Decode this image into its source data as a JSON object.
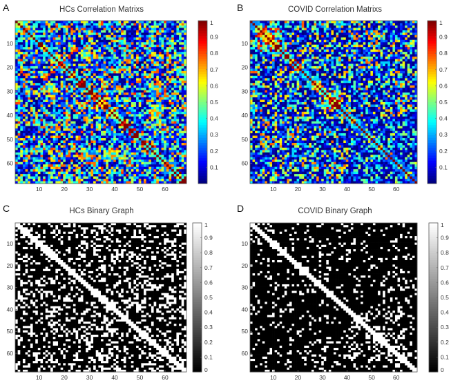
{
  "chart_data": [
    {
      "type": "heatmap",
      "panel": "A",
      "title": "HCs Correlation Matrixs",
      "colormap": "jet",
      "size": 68,
      "seed": 11,
      "pattern": "hc_corr",
      "x_ticks": [
        10,
        20,
        30,
        40,
        50,
        60
      ],
      "y_ticks": [
        10,
        20,
        30,
        40,
        50,
        60
      ],
      "colorbar": {
        "min": 0,
        "max": 1,
        "ticks": [
          0.1,
          0.2,
          0.3,
          0.4,
          0.5,
          0.6,
          0.7,
          0.8,
          0.9,
          1
        ]
      },
      "x_tick_labels": [
        "10",
        "20",
        "30",
        "40",
        "50",
        "60"
      ],
      "y_tick_labels": [
        "10",
        "20",
        "30",
        "40",
        "50",
        "60"
      ],
      "colorbar_labels": [
        "0.1",
        "0.2",
        "0.3",
        "0.4",
        "0.5",
        "0.6",
        "0.7",
        "0.8",
        "0.9",
        "1"
      ]
    },
    {
      "type": "heatmap",
      "panel": "B",
      "title": "COVID Correlation Matrixs",
      "colormap": "jet",
      "size": 68,
      "seed": 23,
      "pattern": "covid_corr",
      "x_ticks": [
        10,
        20,
        30,
        40,
        50,
        60
      ],
      "y_ticks": [
        10,
        20,
        30,
        40,
        50,
        60
      ],
      "colorbar": {
        "min": 0,
        "max": 1,
        "ticks": [
          0.1,
          0.2,
          0.3,
          0.4,
          0.5,
          0.6,
          0.7,
          0.8,
          0.9,
          1
        ]
      },
      "x_tick_labels": [
        "10",
        "20",
        "30",
        "40",
        "50",
        "60"
      ],
      "y_tick_labels": [
        "10",
        "20",
        "30",
        "40",
        "50",
        "60"
      ],
      "colorbar_labels": [
        "0.1",
        "0.2",
        "0.3",
        "0.4",
        "0.5",
        "0.6",
        "0.7",
        "0.8",
        "0.9",
        "1"
      ]
    },
    {
      "type": "heatmap",
      "panel": "C",
      "title": "HCs Binary Graph",
      "colormap": "gray",
      "size": 68,
      "seed": 37,
      "pattern": "hc_bin",
      "x_ticks": [
        10,
        20,
        30,
        40,
        50,
        60
      ],
      "y_ticks": [
        10,
        20,
        30,
        40,
        50,
        60
      ],
      "colorbar": {
        "min": 0,
        "max": 1,
        "ticks": [
          0,
          0.1,
          0.2,
          0.3,
          0.4,
          0.5,
          0.6,
          0.7,
          0.8,
          0.9,
          1
        ]
      },
      "x_tick_labels": [
        "10",
        "20",
        "30",
        "40",
        "50",
        "60"
      ],
      "y_tick_labels": [
        "10",
        "20",
        "30",
        "40",
        "50",
        "60"
      ],
      "colorbar_labels": [
        "0",
        "0.1",
        "0.2",
        "0.3",
        "0.4",
        "0.5",
        "0.6",
        "0.7",
        "0.8",
        "0.9",
        "1"
      ]
    },
    {
      "type": "heatmap",
      "panel": "D",
      "title": "COVID Binary Graph",
      "colormap": "gray",
      "size": 68,
      "seed": 53,
      "pattern": "covid_bin",
      "x_ticks": [
        10,
        20,
        30,
        40,
        50,
        60
      ],
      "y_ticks": [
        10,
        20,
        30,
        40,
        50,
        60
      ],
      "colorbar": {
        "min": 0,
        "max": 1,
        "ticks": [
          0,
          0.1,
          0.2,
          0.3,
          0.4,
          0.5,
          0.6,
          0.7,
          0.8,
          0.9,
          1
        ]
      },
      "x_tick_labels": [
        "10",
        "20",
        "30",
        "40",
        "50",
        "60"
      ],
      "y_tick_labels": [
        "10",
        "20",
        "30",
        "40",
        "50",
        "60"
      ],
      "colorbar_labels": [
        "0",
        "0.1",
        "0.2",
        "0.3",
        "0.4",
        "0.5",
        "0.6",
        "0.7",
        "0.8",
        "0.9",
        "1"
      ]
    }
  ]
}
